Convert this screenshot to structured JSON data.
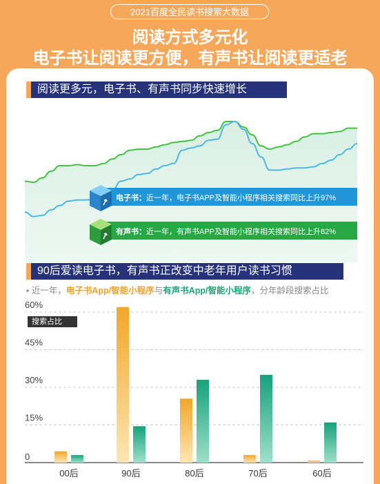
{
  "header": {
    "pill": "2021百度全民读书搜索大数据",
    "title_line1": "阅读方式多元化",
    "title_line2": "电子书让阅读更方便，有声书让阅读更适老"
  },
  "section1": {
    "heading": "阅读更多元，电子书、有声书同步快速增长",
    "callouts": [
      {
        "label": "电子书：",
        "text": "近一年，电子书APP及智能小程序相关搜索同比上升97%",
        "color": "#2196d8"
      },
      {
        "label": "有声书：",
        "text": "近一年，有声书APP及智能小程序相关搜索同比上升82%",
        "color": "#28a745"
      }
    ]
  },
  "section2": {
    "heading": "90后爱读电子书，有声书正改变中老年用户读书习惯",
    "sub_prefix": "▪ 近一年，",
    "sub_orange": "电子书App/智能小程序",
    "sub_mid": "与",
    "sub_green": "有声书App/智能小程序",
    "sub_suffix": "，分年龄段搜索占比",
    "legend_tag": "搜索占比"
  },
  "chart_data": [
    {
      "type": "line",
      "series": [
        {
          "color": "#3ec43e",
          "values": [
            0.36,
            0.35,
            0.39,
            0.45,
            0.5,
            0.5,
            0.51,
            0.5,
            0.5,
            0.52,
            0.56,
            0.6,
            0.64,
            0.65,
            0.65,
            0.67,
            0.69,
            0.71,
            0.72,
            0.73,
            0.77,
            0.8,
            0.82,
            0.9,
            0.9,
            0.85,
            0.78,
            0.68,
            0.65,
            0.67,
            0.69,
            0.72,
            0.76,
            0.79,
            0.79,
            0.8,
            0.81,
            0.84,
            0.84
          ]
        },
        {
          "color": "#4ab8e0",
          "values": [
            0.08,
            0.04,
            0.05,
            0.1,
            0.14,
            0.18,
            0.19,
            0.19,
            0.2,
            0.24,
            0.28,
            0.36,
            0.38,
            0.42,
            0.43,
            0.47,
            0.5,
            0.52,
            0.64,
            0.66,
            0.68,
            0.73,
            0.74,
            0.87,
            0.9,
            0.83,
            0.7,
            0.58,
            0.46,
            0.46,
            0.47,
            0.48,
            0.48,
            0.49,
            0.52,
            0.55,
            0.6,
            0.65,
            0.7
          ]
        }
      ]
    },
    {
      "type": "bar",
      "categories": [
        "00后",
        "90后",
        "80后",
        "70后",
        "60后"
      ],
      "series": [
        {
          "color": "#f0a12c",
          "values": [
            4.5,
            62,
            25.5,
            3,
            0.8
          ]
        },
        {
          "color": "#1fa57a",
          "values": [
            3,
            14.5,
            33,
            35,
            16
          ]
        }
      ],
      "y_ticks": [
        "0",
        "15%",
        "30%",
        "45%",
        "60%"
      ],
      "ylim": [
        0,
        60
      ],
      "grid": "dashed"
    }
  ]
}
